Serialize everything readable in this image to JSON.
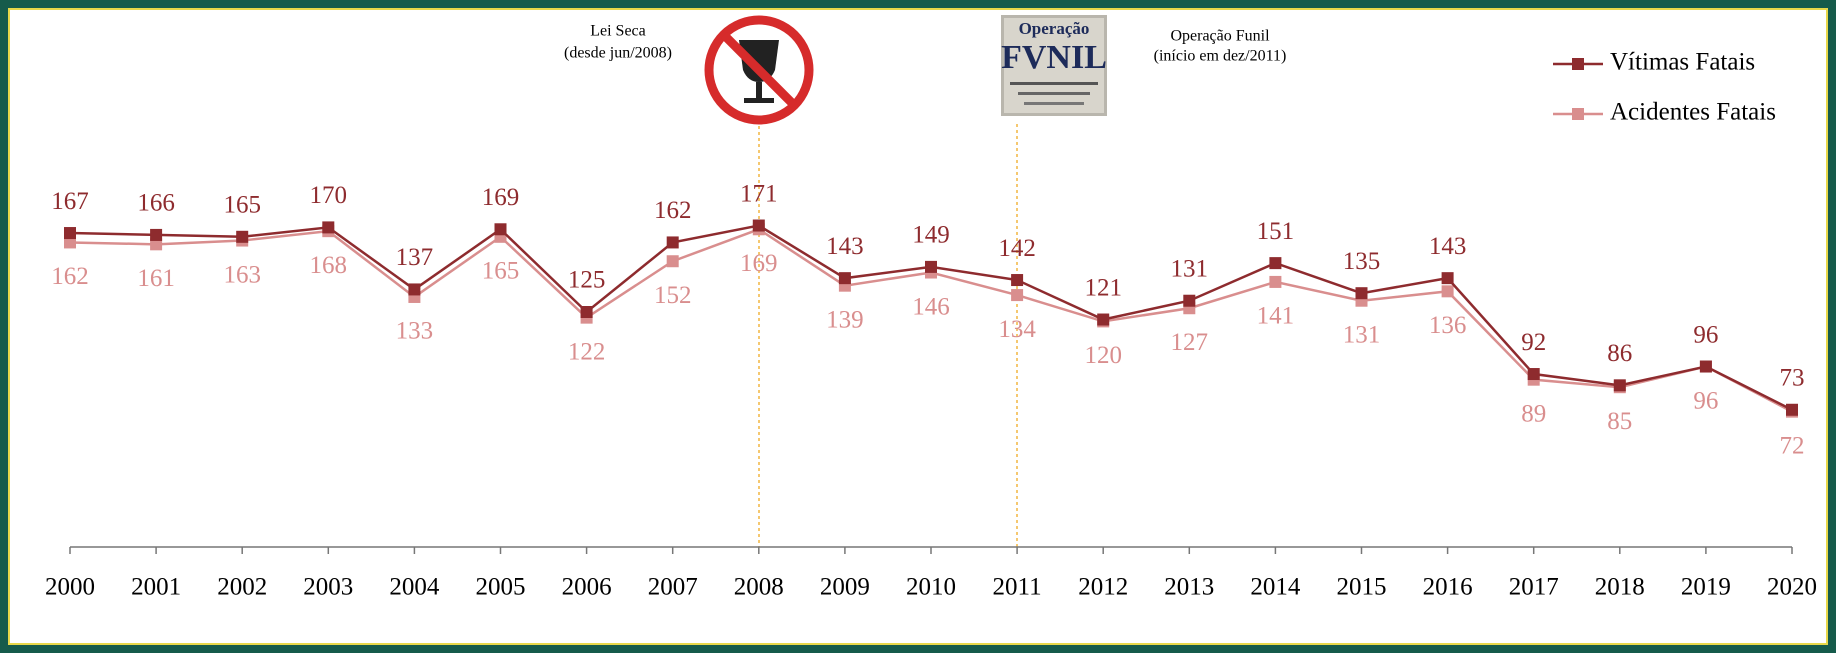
{
  "chart_data": {
    "type": "line",
    "categories": [
      "2000",
      "2001",
      "2002",
      "2003",
      "2004",
      "2005",
      "2006",
      "2007",
      "2008",
      "2009",
      "2010",
      "2011",
      "2012",
      "2013",
      "2014",
      "2015",
      "2016",
      "2017",
      "2018",
      "2019",
      "2020"
    ],
    "series": [
      {
        "name": "Vítimas Fatais",
        "color": "#8e2b2e",
        "values": [
          167,
          166,
          165,
          170,
          137,
          169,
          125,
          162,
          171,
          143,
          149,
          142,
          121,
          131,
          151,
          135,
          143,
          92,
          86,
          96,
          73
        ]
      },
      {
        "name": "Acidentes Fatais",
        "color": "#d98e8e",
        "values": [
          162,
          161,
          163,
          168,
          133,
          165,
          122,
          152,
          169,
          139,
          146,
          134,
          120,
          127,
          141,
          131,
          136,
          89,
          85,
          96,
          72
        ]
      }
    ],
    "ylim": [
      0,
      200
    ],
    "annotations": [
      {
        "title": "Lei Seca",
        "subtitle": "(desde jun/2008)"
      },
      {
        "title": "Operação Funil",
        "subtitle": "(início em dez/2011)",
        "poster": [
          "Operação",
          "FVNIL"
        ]
      }
    ]
  }
}
